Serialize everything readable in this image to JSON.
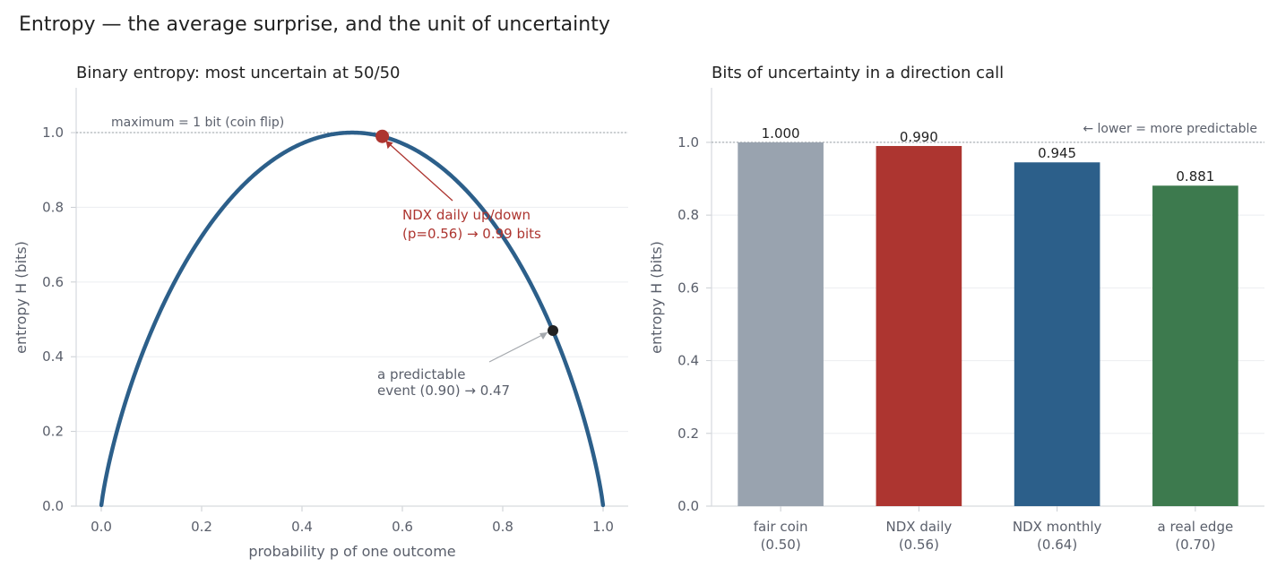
{
  "suptitle": "Entropy — the average surprise, and the unit of uncertainty",
  "colors": {
    "curve": "#2c5f8a",
    "ndx": "#ad3530",
    "dark_point": "#222222",
    "fair_coin": "#99a3af",
    "ndx_daily": "#ad3530",
    "ndx_monthly": "#2c5f8a",
    "real_edge": "#3d7a4e",
    "muted_text": "#5a5f6b",
    "axis": "#d6d9de"
  },
  "chart_data": [
    {
      "type": "line",
      "title": "Binary entropy: most uncertain at 50/50",
      "xlabel": "probability p of one outcome",
      "ylabel": "entropy H (bits)",
      "xlim": [
        -0.05,
        1.05
      ],
      "ylim": [
        0,
        1.12
      ],
      "xticks": [
        "0.0",
        "0.2",
        "0.4",
        "0.6",
        "0.8",
        "1.0"
      ],
      "yticks": [
        "0.0",
        "0.2",
        "0.4",
        "0.6",
        "0.8",
        "1.0"
      ],
      "grid": "horizontal",
      "series": [
        {
          "function": "binary_entropy",
          "x": [
            0.01,
            0.05,
            0.1,
            0.15,
            0.2,
            0.25,
            0.3,
            0.35,
            0.4,
            0.45,
            0.5,
            0.55,
            0.6,
            0.65,
            0.7,
            0.75,
            0.8,
            0.85,
            0.9,
            0.95,
            0.99
          ],
          "y": [
            0.081,
            0.286,
            0.469,
            0.61,
            0.722,
            0.811,
            0.881,
            0.934,
            0.971,
            0.993,
            1.0,
            0.993,
            0.971,
            0.934,
            0.881,
            0.811,
            0.722,
            0.61,
            0.469,
            0.286,
            0.081
          ]
        }
      ],
      "reference_line": {
        "y": 1.0,
        "label": "maximum = 1 bit (coin flip)"
      },
      "points": [
        {
          "x": 0.56,
          "y": 0.99,
          "label_lines": [
            "NDX daily up/down",
            "(p=0.56) → 0.99 bits"
          ]
        },
        {
          "x": 0.9,
          "y": 0.47,
          "label_lines": [
            "a predictable",
            "event (0.90) → 0.47"
          ]
        }
      ]
    },
    {
      "type": "bar",
      "title": "Bits of uncertainty in a direction call",
      "ylabel": "entropy H (bits)",
      "ylim": [
        0,
        1.15
      ],
      "yticks": [
        "0.0",
        "0.2",
        "0.4",
        "0.6",
        "0.8",
        "1.0"
      ],
      "grid": "horizontal",
      "categories": [
        {
          "line1": "fair coin",
          "line2": "(0.50)"
        },
        {
          "line1": "NDX daily",
          "line2": "(0.56)"
        },
        {
          "line1": "NDX monthly",
          "line2": "(0.64)"
        },
        {
          "line1": "a real edge",
          "line2": "(0.70)"
        }
      ],
      "values": [
        1.0,
        0.99,
        0.945,
        0.881
      ],
      "value_labels": [
        "1.000",
        "0.990",
        "0.945",
        "0.881"
      ],
      "reference_line": {
        "y": 1.0,
        "label": "← lower = more predictable"
      }
    }
  ]
}
